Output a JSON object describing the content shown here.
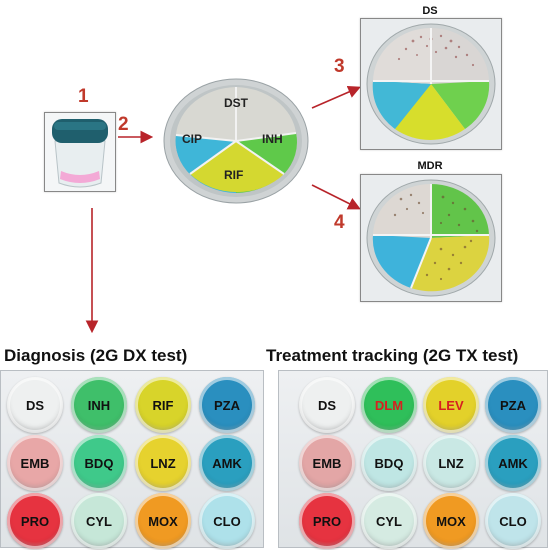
{
  "steps": {
    "one": "1",
    "two": "2",
    "three": "3",
    "four": "4"
  },
  "center_plate": {
    "q1": "DST",
    "q2": "CIP",
    "q3": "INH",
    "q4": "RIF"
  },
  "plate_ds": {
    "label": "DS"
  },
  "plate_mdr": {
    "label": "MDR"
  },
  "sections": {
    "diagnosis": "Diagnosis (2G DX test)",
    "treatment": "Treatment tracking (2G TX test)"
  },
  "dx_wells": [
    {
      "label": "DS",
      "color": "#eef0f0",
      "text_color": "#111111"
    },
    {
      "label": "INH",
      "color": "#3fbf6a",
      "text_color": "#111111"
    },
    {
      "label": "RIF",
      "color": "#d8d42a",
      "text_color": "#111111"
    },
    {
      "label": "PZA",
      "color": "#2a8fbf",
      "text_color": "#111111"
    },
    {
      "label": "EMB",
      "color": "#e8a7a7",
      "text_color": "#111111"
    },
    {
      "label": "BDQ",
      "color": "#3fc98a",
      "text_color": "#111111"
    },
    {
      "label": "LNZ",
      "color": "#e6d22e",
      "text_color": "#111111"
    },
    {
      "label": "AMK",
      "color": "#2a9fbf",
      "text_color": "#111111"
    },
    {
      "label": "PRO",
      "color": "#e63340",
      "text_color": "#111111"
    },
    {
      "label": "CYL",
      "color": "#c6e7d8",
      "text_color": "#111111"
    },
    {
      "label": "MOX",
      "color": "#f09a22",
      "text_color": "#111111"
    },
    {
      "label": "CLO",
      "color": "#aee1ea",
      "text_color": "#111111"
    }
  ],
  "tx_wells": [
    {
      "label": "DS",
      "color": "#eef0f0",
      "text_color": "#111111"
    },
    {
      "label": "DLM",
      "color": "#2fbf5a",
      "text_color": "#d62020"
    },
    {
      "label": "LEV",
      "color": "#e3d12a",
      "text_color": "#d62020"
    },
    {
      "label": "PZA",
      "color": "#2a8fbf",
      "text_color": "#111111"
    },
    {
      "label": "EMB",
      "color": "#e3a6a6",
      "text_color": "#111111"
    },
    {
      "label": "BDQ",
      "color": "#bfe6e4",
      "text_color": "#111111"
    },
    {
      "label": "LNZ",
      "color": "#c9e8e4",
      "text_color": "#111111"
    },
    {
      "label": "AMK",
      "color": "#2a9fbf",
      "text_color": "#111111"
    },
    {
      "label": "PRO",
      "color": "#e63340",
      "text_color": "#111111"
    },
    {
      "label": "CYL",
      "color": "#d5ebe2",
      "text_color": "#111111"
    },
    {
      "label": "MOX",
      "color": "#f09a22",
      "text_color": "#111111"
    },
    {
      "label": "CLO",
      "color": "#bfe4ea",
      "text_color": "#111111"
    }
  ],
  "colors": {
    "arrow": "#b8242a",
    "cip": "#3fb6d8",
    "inh": "#5fc94a",
    "rif": "#d4d830",
    "dst": "#d8d8d2"
  }
}
